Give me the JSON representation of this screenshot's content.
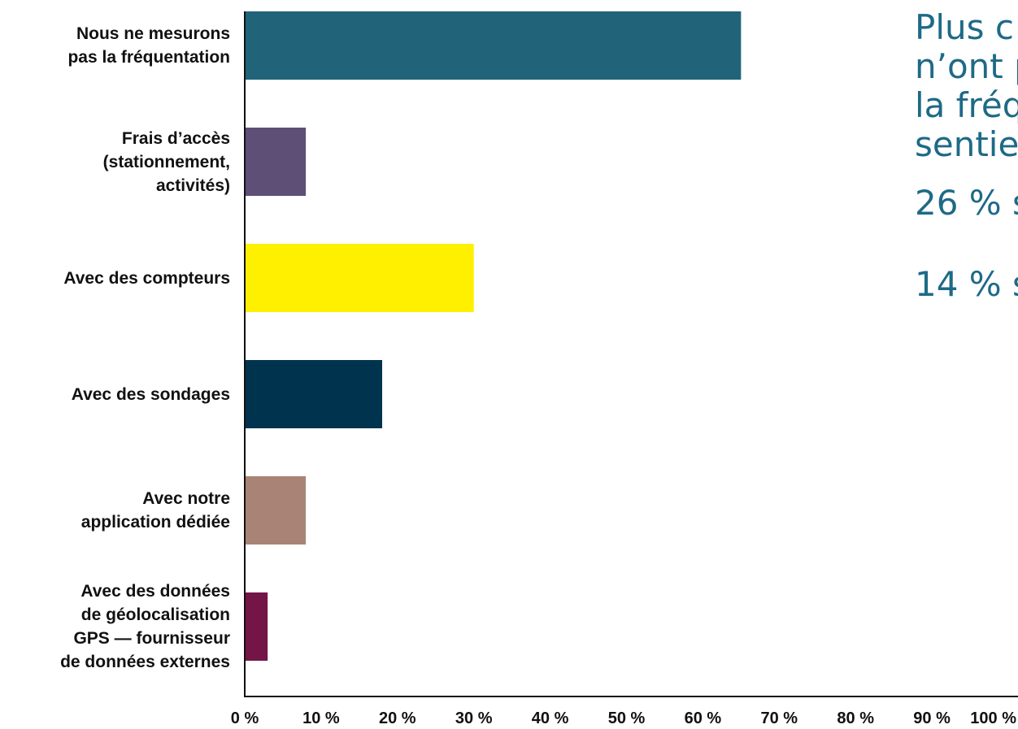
{
  "chart_data": {
    "type": "bar",
    "orientation": "horizontal",
    "categories": [
      "Nous ne mesurons\npas la fréquentation",
      "Frais d’accès\n(stationnement,\nactivités)",
      "Avec des compteurs",
      "Avec des sondages",
      "Avec notre\napplication dédiée",
      "Avec des données\nde géolocalisation\nGPS — fournisseur\nde données externes"
    ],
    "values": [
      65,
      8,
      30,
      18,
      8,
      3
    ],
    "colors": [
      "#216479",
      "#5e4f76",
      "#fff000",
      "#00334e",
      "#a98476",
      "#731546"
    ],
    "xlim": [
      0,
      100
    ],
    "xticks": [
      "0 %",
      "10 %",
      "20 %",
      "30 %",
      "40 %",
      "50 %",
      "60 %",
      "70 %",
      "80 %",
      "90 %",
      "100 %"
    ],
    "title": "",
    "xlabel": "",
    "ylabel": "",
    "grid": false
  },
  "callout": {
    "headline": "Plus c\nn’ont p\nla fréq\nsentie",
    "stat1": "26 % s",
    "stat2": "14 % s",
    "color": "#1e6a86"
  }
}
